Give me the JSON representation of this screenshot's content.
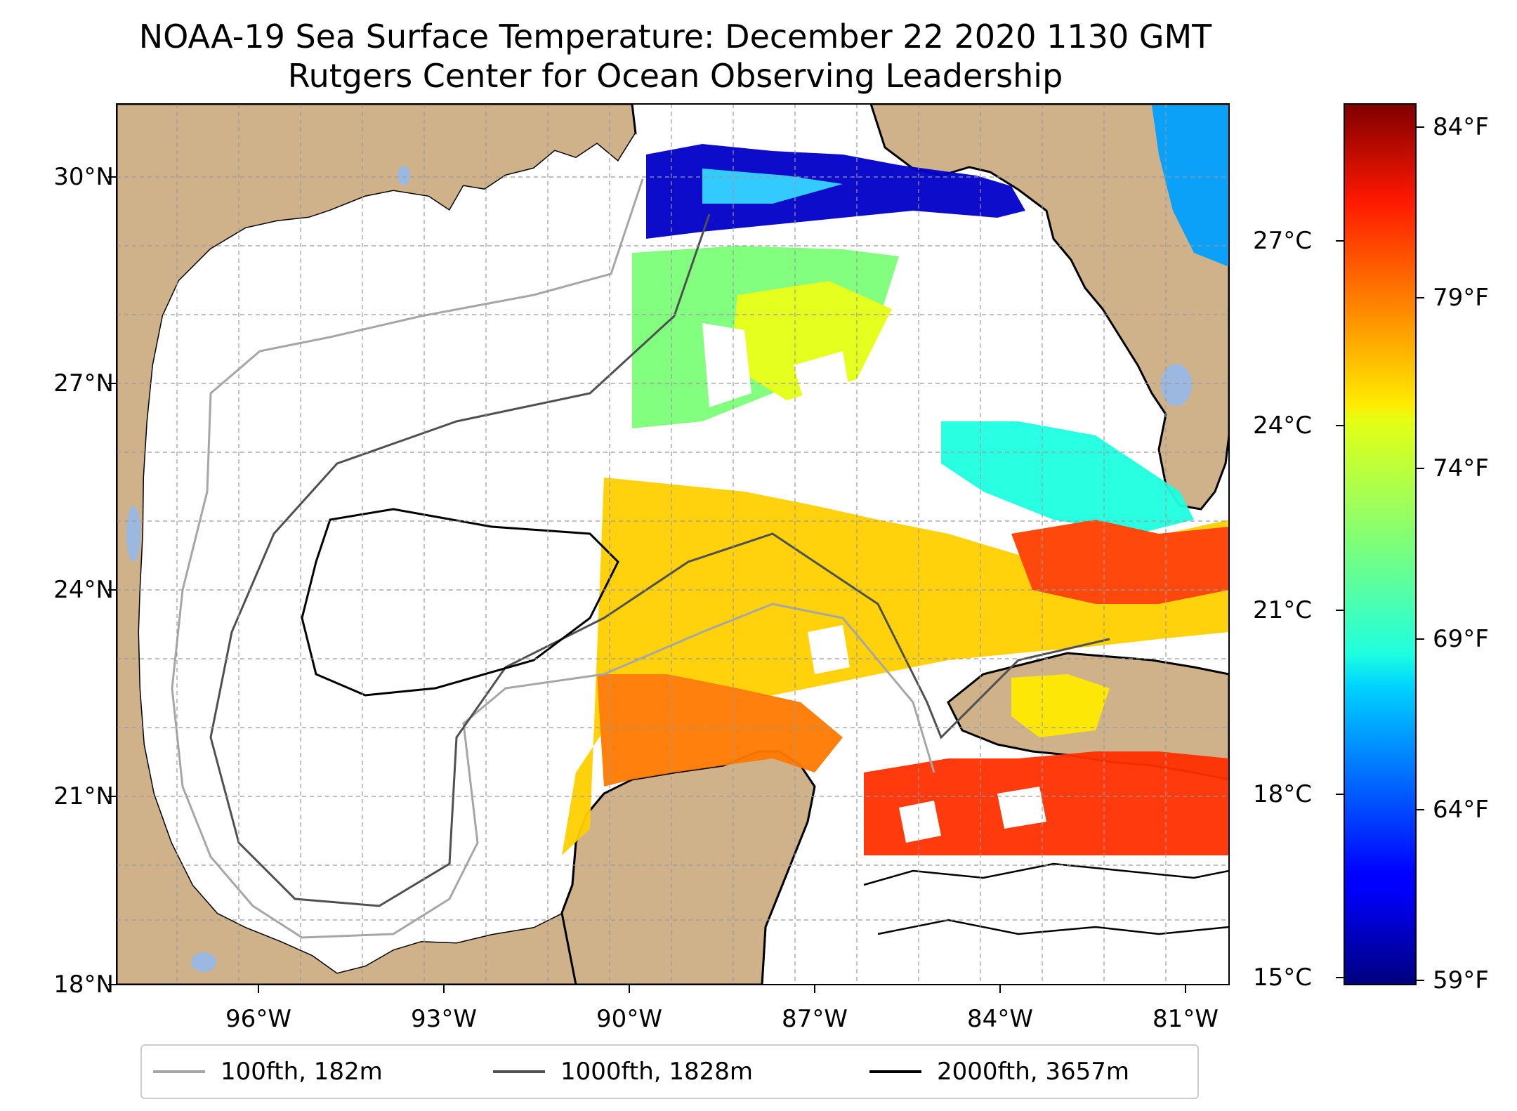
{
  "title": {
    "line1": "NOAA-19 Sea Surface Temperature: December 22 2020 1130 GMT",
    "line2": "Rutgers Center for Ocean Observing Leadership"
  },
  "map": {
    "lat_labels": [
      "30°N",
      "27°N",
      "24°N",
      "21°N",
      "18°N"
    ],
    "lon_labels": [
      "96°W",
      "93°W",
      "90°W",
      "87°W",
      "84°W",
      "81°W"
    ],
    "land_color": "#cfb28a",
    "water_color": "#ffffff",
    "lake_color": "#9bb8e0",
    "grid": true
  },
  "colorbar": {
    "colormap": "jet",
    "celsius_labels": [
      "27°C",
      "24°C",
      "21°C",
      "18°C",
      "15°C"
    ],
    "fahrenheit_labels": [
      "84°F",
      "79°F",
      "74°F",
      "69°F",
      "64°F",
      "59°F"
    ]
  },
  "legend": {
    "items": [
      {
        "label": "100fth, 182m",
        "color": "#a6a6a6"
      },
      {
        "label": "1000fth, 1828m",
        "color": "#505050"
      },
      {
        "label": "2000fth, 3657m",
        "color": "#000000"
      }
    ]
  }
}
